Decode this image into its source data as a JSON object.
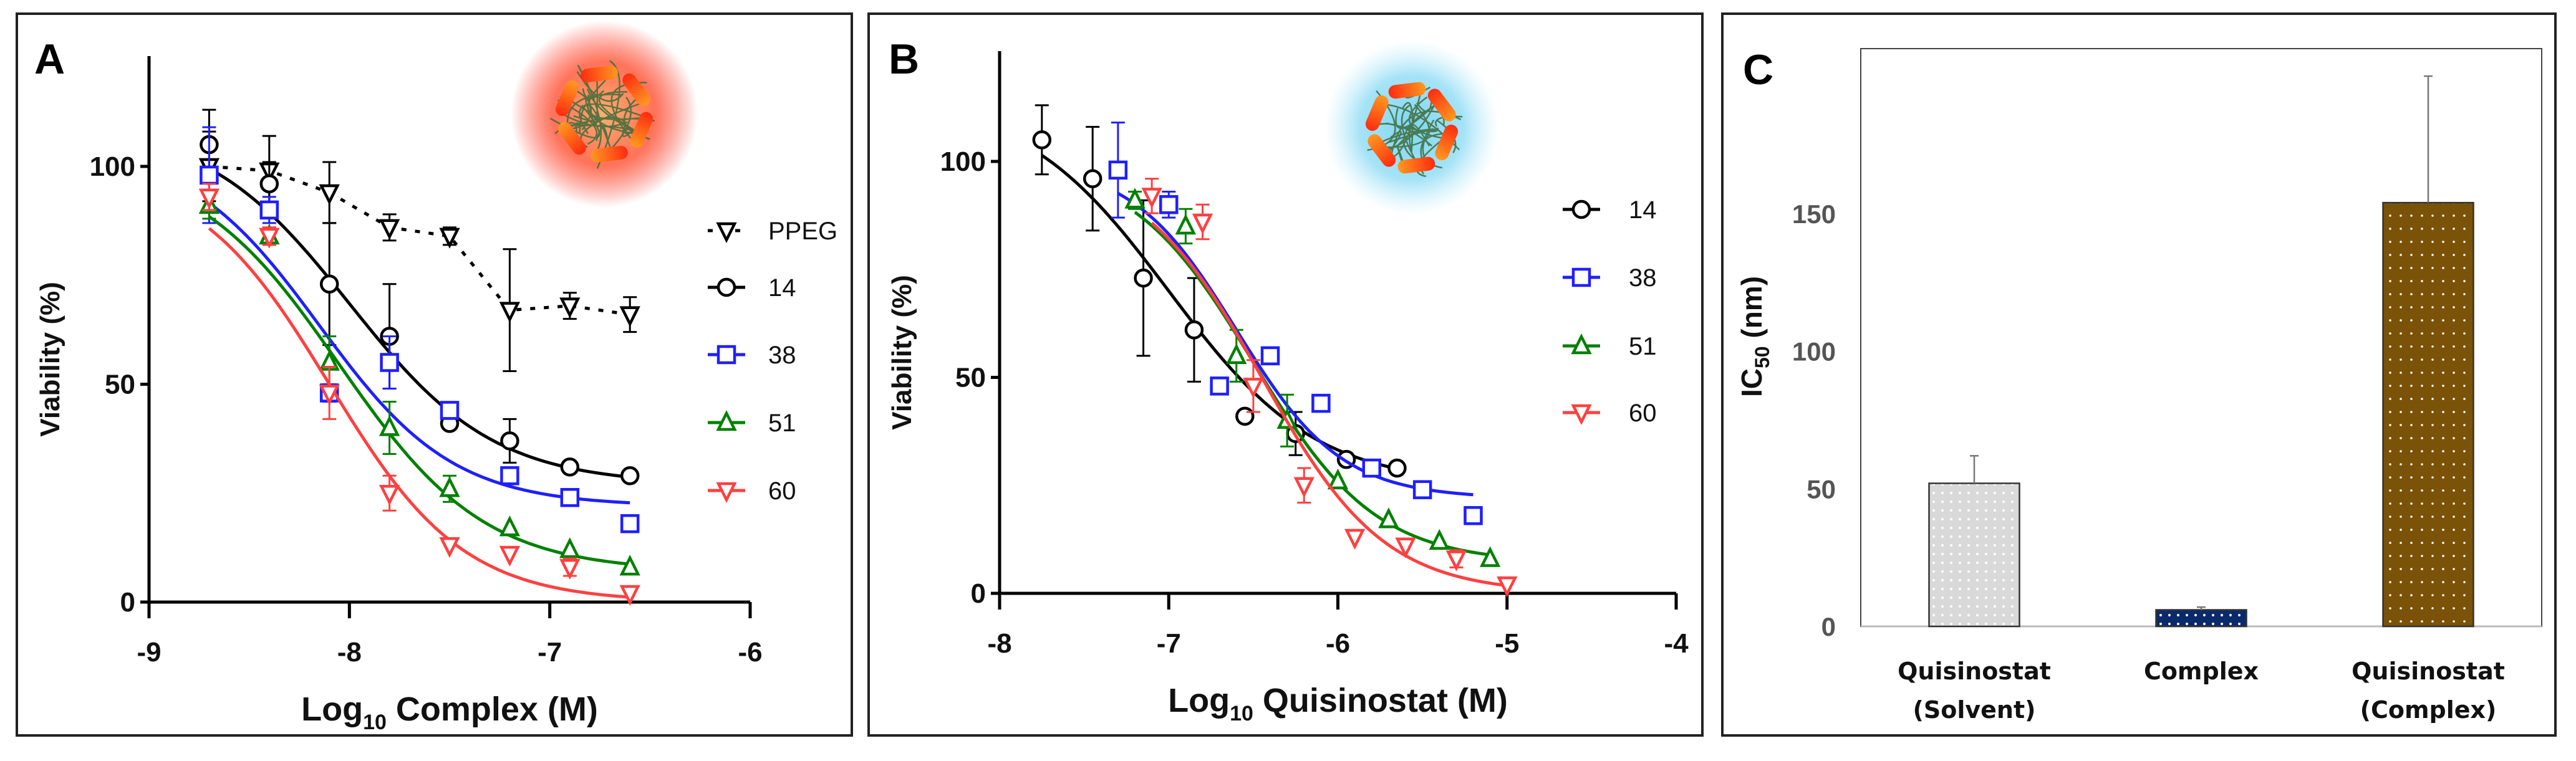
{
  "chart_data": [
    {
      "panel_label": "A",
      "type": "line",
      "xlabel": {
        "main": "Log",
        "sub": "10",
        "tail": " Complex (M)"
      },
      "ylabel": "Viability (%)",
      "xlim": [
        -9,
        -6
      ],
      "ylim": [
        0,
        125
      ],
      "xticks": [
        "-9",
        "-8",
        "-7",
        "-6"
      ],
      "yticks": [
        "0",
        "50",
        "100"
      ],
      "legend_position": "right",
      "inset_image": "nanoparticle-red-glow",
      "series": [
        {
          "name": "PPEG",
          "marker": "triangle-down-filled-outline",
          "color": "#000000",
          "line": "dotted",
          "x": [
            -8.7,
            -8.4,
            -8.1,
            -7.8,
            -7.5,
            -7.2,
            -6.9,
            -6.6
          ],
          "y": [
            100,
            99,
            94,
            86,
            84,
            67,
            68,
            66
          ],
          "err": [
            8,
            8,
            7,
            3,
            2,
            14,
            3,
            4
          ]
        },
        {
          "name": "14",
          "marker": "circle",
          "color": "#000000",
          "line": "solid",
          "x": [
            -8.7,
            -8.4,
            -8.1,
            -7.8,
            -7.5,
            -7.2,
            -6.9,
            -6.6
          ],
          "y": [
            105,
            96,
            73,
            61,
            41,
            37,
            31,
            29
          ],
          "err": [
            8,
            5,
            14,
            12,
            1,
            5,
            1,
            1
          ]
        },
        {
          "name": "38",
          "marker": "square",
          "color": "#1f1fff",
          "line": "solid",
          "x": [
            -8.7,
            -8.4,
            -8.1,
            -7.8,
            -7.5,
            -7.2,
            -6.9,
            -6.6
          ],
          "y": [
            98,
            90,
            48,
            55,
            44,
            29,
            24,
            18
          ],
          "err": [
            11,
            3,
            2,
            6,
            1,
            1,
            1,
            1
          ]
        },
        {
          "name": "51",
          "marker": "triangle-up",
          "color": "#008000",
          "line": "solid",
          "x": [
            -8.7,
            -8.4,
            -8.1,
            -7.8,
            -7.5,
            -7.2,
            -6.9,
            -6.6
          ],
          "y": [
            91,
            84,
            55,
            40,
            26,
            17,
            12,
            8
          ],
          "err": [
            3,
            2,
            6,
            6,
            3,
            1,
            1,
            1
          ]
        },
        {
          "name": "60",
          "marker": "triangle-down",
          "color": "#ff4040",
          "line": "solid",
          "x": [
            -8.7,
            -8.4,
            -8.1,
            -7.8,
            -7.5,
            -7.2,
            -6.9,
            -6.6
          ],
          "y": [
            93,
            84,
            48,
            25,
            13,
            11,
            8,
            2
          ],
          "err": [
            3,
            2,
            6,
            4,
            1,
            1,
            2,
            1
          ]
        }
      ]
    },
    {
      "panel_label": "B",
      "type": "line",
      "xlabel": {
        "main": "Log",
        "sub": "10",
        "tail": " Quisinostat (M)"
      },
      "ylabel": "Viability (%)",
      "xlim": [
        -8,
        -4
      ],
      "ylim": [
        0,
        125
      ],
      "xticks": [
        "-8",
        "-7",
        "-6",
        "-5",
        "-4"
      ],
      "yticks": [
        "0",
        "50",
        "100"
      ],
      "legend_position": "right",
      "inset_image": "nanoparticle-blue-glow",
      "series": [
        {
          "name": "14",
          "marker": "circle",
          "color": "#000000",
          "line": "solid",
          "x": [
            -7.75,
            -7.45,
            -7.15,
            -6.85,
            -6.55,
            -6.25,
            -5.95,
            -5.65
          ],
          "y": [
            105,
            96,
            73,
            61,
            41,
            37,
            31,
            29
          ],
          "err": [
            8,
            12,
            18,
            12,
            1,
            5,
            1,
            1
          ]
        },
        {
          "name": "38",
          "marker": "square",
          "color": "#1f1fff",
          "line": "solid",
          "x": [
            -7.3,
            -7.0,
            -6.7,
            -6.4,
            -6.1,
            -5.8,
            -5.5,
            -5.2
          ],
          "y": [
            98,
            90,
            48,
            55,
            44,
            29,
            24,
            18
          ],
          "err": [
            11,
            3,
            1,
            1,
            1,
            1,
            1,
            1
          ]
        },
        {
          "name": "51",
          "marker": "triangle-up",
          "color": "#008000",
          "line": "solid",
          "x": [
            -7.2,
            -6.9,
            -6.6,
            -6.3,
            -6.0,
            -5.7,
            -5.4,
            -5.1
          ],
          "y": [
            91,
            85,
            55,
            40,
            26,
            17,
            12,
            8
          ],
          "err": [
            2,
            4,
            6,
            6,
            1,
            1,
            1,
            1
          ]
        },
        {
          "name": "60",
          "marker": "triangle-down",
          "color": "#ff4040",
          "line": "solid",
          "x": [
            -7.1,
            -6.8,
            -6.5,
            -6.2,
            -5.9,
            -5.6,
            -5.3,
            -5.0
          ],
          "y": [
            92,
            86,
            48,
            25,
            13,
            11,
            8,
            2
          ],
          "err": [
            4,
            4,
            6,
            4,
            1,
            1,
            2,
            1
          ]
        }
      ]
    },
    {
      "panel_label": "C",
      "type": "bar",
      "ylabel": {
        "main": "IC",
        "sub": "50",
        "tail": " (nm)"
      },
      "ylim": [
        0,
        210
      ],
      "yticks": [
        "0",
        "50",
        "100",
        "150"
      ],
      "categories": [
        [
          "Quisinostat",
          "(Solvent)"
        ],
        [
          "Complex"
        ],
        [
          "Quisinostat",
          "(Complex)"
        ]
      ],
      "values": [
        52,
        6,
        154
      ],
      "errors": [
        10,
        1,
        46
      ],
      "colors": [
        "#d9d9d9",
        "#0b2a6b",
        "#7a5208"
      ],
      "pattern": "dotted"
    }
  ]
}
